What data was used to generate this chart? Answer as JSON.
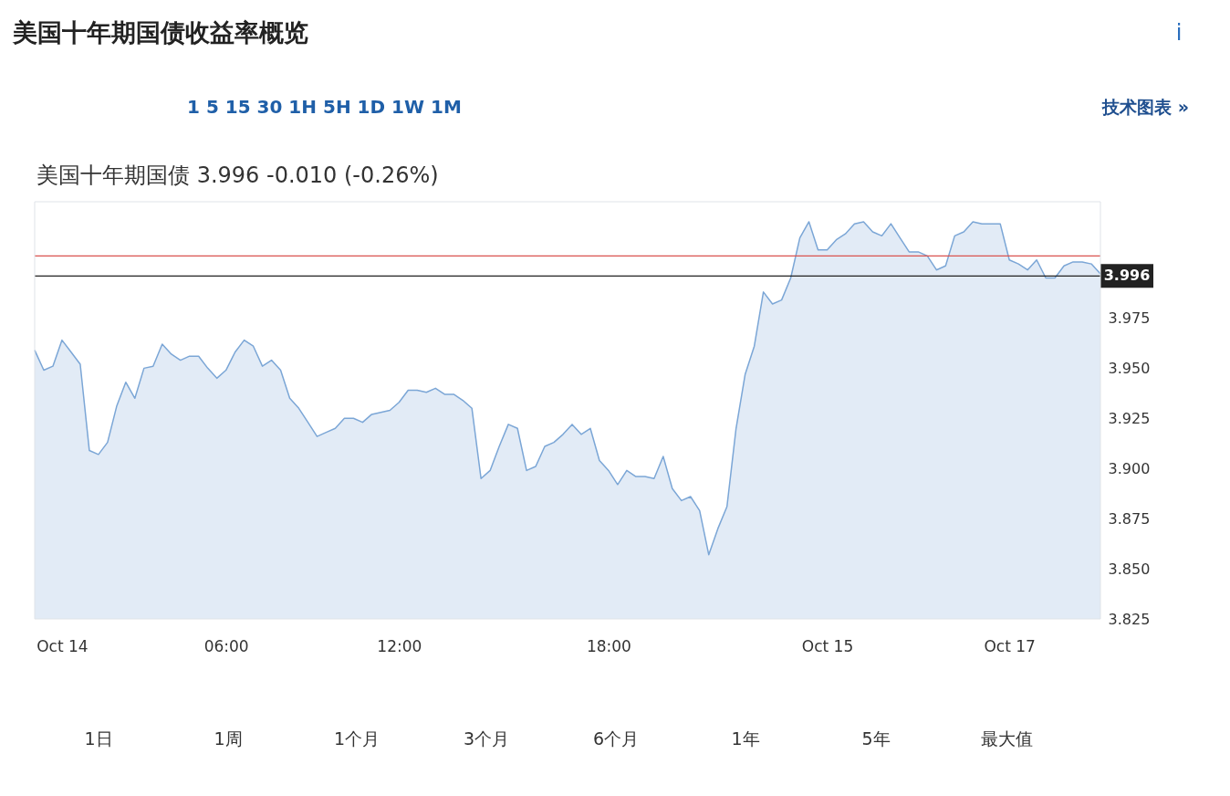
{
  "chart_data": {
    "type": "area",
    "title": "美国十年期国债收益率概览",
    "subtitle": "美国十年期国债 3.996 -0.010 (-0.26%)",
    "categories": [
      null,
      null,
      null,
      "Oct 14",
      null,
      null,
      null,
      null,
      null,
      null,
      null,
      null,
      null,
      null,
      null,
      null,
      null,
      null,
      null,
      null,
      null,
      "06:00",
      null,
      null,
      null,
      null,
      null,
      null,
      null,
      null,
      null,
      null,
      null,
      null,
      null,
      null,
      null,
      null,
      null,
      null,
      "12:00",
      null,
      null,
      null,
      null,
      null,
      null,
      null,
      null,
      null,
      null,
      null,
      null,
      null,
      null,
      null,
      null,
      null,
      null,
      null,
      null,
      null,
      null,
      "18:00",
      null,
      null,
      null,
      null,
      null,
      null,
      null,
      null,
      null,
      null,
      null,
      null,
      null,
      null,
      null,
      null,
      null,
      null,
      null,
      null,
      null,
      null,
      null,
      "Oct 15",
      null,
      null,
      null,
      null,
      null,
      null,
      null,
      null,
      null,
      null,
      null,
      null,
      null,
      null,
      null,
      null,
      null,
      null,
      null,
      "Oct 17",
      null,
      null,
      null,
      null,
      null,
      null,
      null,
      null,
      null,
      null
    ],
    "series": [
      {
        "color": "#7ba6d6",
        "values": [
          3.959,
          3.949,
          3.951,
          3.964,
          3.958,
          3.952,
          3.909,
          3.907,
          3.913,
          3.931,
          3.943,
          3.935,
          3.95,
          3.951,
          3.962,
          3.957,
          3.954,
          3.956,
          3.956,
          3.95,
          3.945,
          3.949,
          3.958,
          3.964,
          3.961,
          3.951,
          3.954,
          3.949,
          3.935,
          3.93,
          3.923,
          3.916,
          3.918,
          3.92,
          3.925,
          3.925,
          3.923,
          3.927,
          3.928,
          3.929,
          3.933,
          3.939,
          3.939,
          3.938,
          3.94,
          3.937,
          3.937,
          3.934,
          3.93,
          3.895,
          3.899,
          3.911,
          3.922,
          3.92,
          3.899,
          3.901,
          3.911,
          3.913,
          3.917,
          3.922,
          3.917,
          3.92,
          3.904,
          3.899,
          3.892,
          3.899,
          3.896,
          3.896,
          3.895,
          3.906,
          3.89,
          3.884,
          3.886,
          3.879,
          3.857,
          3.87,
          3.881,
          3.92,
          3.947,
          3.961,
          3.988,
          3.982,
          3.984,
          3.995,
          4.015,
          4.023,
          4.009,
          4.009,
          4.014,
          4.017,
          4.022,
          4.023,
          4.018,
          4.016,
          4.022,
          4.015,
          4.008,
          4.008,
          4.006,
          3.999,
          4.001,
          4.016,
          4.018,
          4.023,
          4.022,
          4.022,
          4.022,
          4.004,
          4.002,
          3.999,
          4.004,
          3.995,
          3.995,
          4.001,
          4.003,
          4.003,
          4.002,
          3.997
        ]
      }
    ],
    "ylim": [
      3.825,
      4.033
    ],
    "yticks": [
      {
        "value": 3.825,
        "label": "3.825"
      },
      {
        "value": 3.85,
        "label": "3.850"
      },
      {
        "value": 3.875,
        "label": "3.875"
      },
      {
        "value": 3.9,
        "label": "3.900"
      },
      {
        "value": 3.925,
        "label": "3.925"
      },
      {
        "value": 3.95,
        "label": "3.950"
      },
      {
        "value": 3.975,
        "label": "3.975"
      }
    ],
    "ref_lines": [
      {
        "axis": "y",
        "value": 4.006,
        "color": "#d9534f"
      },
      {
        "axis": "y",
        "value": 3.996,
        "label": "3.996",
        "color": "#222222"
      }
    ],
    "grid": false,
    "annotations": [
      "i",
      "1  5  15  30  1H  5H  1D  1W  1M",
      "技术图表 »",
      "1日",
      "1周",
      "1个月",
      "3个月",
      "6个月",
      "1年",
      "5年",
      "最大值"
    ]
  }
}
